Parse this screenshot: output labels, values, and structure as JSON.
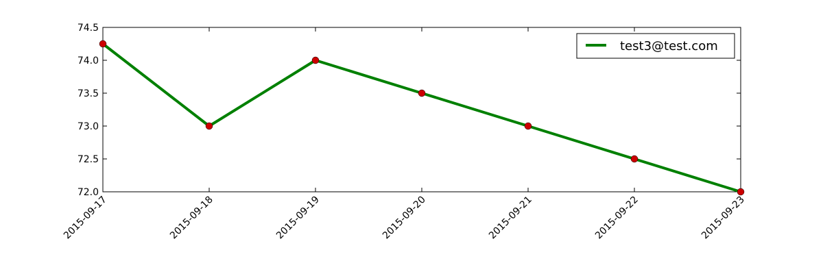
{
  "chart_data": {
    "type": "line",
    "title": "",
    "xlabel": "",
    "ylabel": "",
    "x": [
      "2015-09-17",
      "2015-09-18",
      "2015-09-19",
      "2015-09-20",
      "2015-09-21",
      "2015-09-22",
      "2015-09-23"
    ],
    "series": [
      {
        "name": "test3@test.com",
        "values": [
          74.25,
          73.0,
          74.0,
          73.5,
          73.0,
          72.5,
          72.0
        ],
        "line_color": "#008000",
        "marker_color": "#cc0000"
      }
    ],
    "ylim": [
      72.0,
      74.5
    ],
    "yticks": [
      "72.0",
      "72.5",
      "73.0",
      "73.5",
      "74.0",
      "74.5"
    ],
    "xtick_rotation_deg": 45,
    "grid": false,
    "legend_position": "top-right"
  }
}
